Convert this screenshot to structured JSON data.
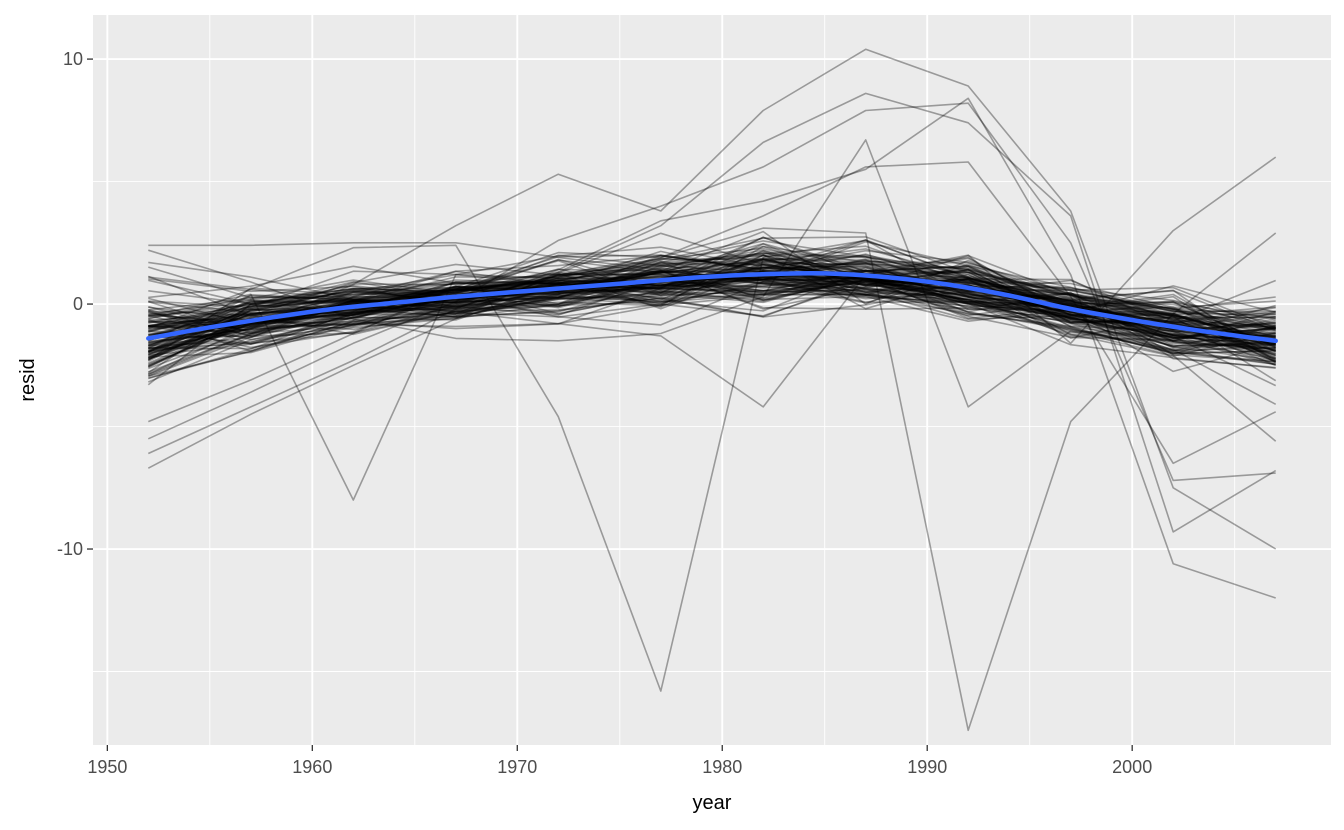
{
  "chart_data": {
    "type": "line",
    "title": "",
    "xlabel": "year",
    "ylabel": "resid",
    "xlim": [
      1949.3,
      2009.7
    ],
    "ylim": [
      -18.0,
      11.8
    ],
    "x_ticks": [
      1950,
      1960,
      1970,
      1980,
      1990,
      2000
    ],
    "x_tick_labels": [
      "1950",
      "1960",
      "1970",
      "1980",
      "1990",
      "2000"
    ],
    "y_ticks": [
      -10,
      0,
      10
    ],
    "y_tick_labels": [
      "-10",
      "0",
      "10"
    ],
    "grid": true,
    "legend": "none",
    "x": [
      1952,
      1957,
      1962,
      1967,
      1972,
      1977,
      1982,
      1987,
      1992,
      1997,
      2002,
      2007
    ],
    "outlier_series": [
      {
        "values": [
          2.4,
          2.4,
          2.5,
          2.5,
          1.9,
          1.4,
          1.2,
          1.0,
          0.6,
          0.2,
          -0.2,
          -0.4
        ]
      },
      {
        "values": [
          -0.5,
          0.4,
          -8.0,
          1.2,
          0.8,
          0.9,
          1.5,
          2.0,
          1.2,
          -0.6,
          -0.9,
          -1.2
        ]
      },
      {
        "values": [
          -1.0,
          0.6,
          2.3,
          2.4,
          -4.6,
          -15.8,
          1.9,
          2.6,
          1.1,
          -0.9,
          -1.1,
          -1.2
        ]
      },
      {
        "values": [
          -2.0,
          -1.0,
          0.8,
          3.2,
          5.3,
          3.8,
          7.9,
          10.4,
          8.9,
          3.8,
          -7.5,
          -10.0
        ]
      },
      {
        "values": [
          -6.7,
          -4.5,
          -2.5,
          -0.6,
          1.3,
          3.2,
          6.6,
          8.6,
          7.4,
          3.6,
          -9.3,
          -6.8
        ]
      },
      {
        "values": [
          -5.5,
          -3.6,
          -1.6,
          0.1,
          2.6,
          4.0,
          5.6,
          7.9,
          8.2,
          2.5,
          -7.2,
          -6.9
        ]
      },
      {
        "values": [
          -4.8,
          -3.1,
          -1.2,
          0.7,
          2.1,
          1.9,
          3.1,
          2.9,
          -17.4,
          -4.8,
          -0.4,
          2.9
        ]
      },
      {
        "values": [
          -6.1,
          -4.2,
          -2.3,
          -0.2,
          1.4,
          3.4,
          4.2,
          5.5,
          8.4,
          1.2,
          -10.6,
          -12.0
        ]
      },
      {
        "values": [
          1.1,
          0.6,
          0.2,
          -0.3,
          -0.8,
          -1.3,
          -4.2,
          1.2,
          2.0,
          -1.6,
          3.0,
          6.0
        ]
      },
      {
        "values": [
          2.2,
          0.9,
          -0.6,
          -1.4,
          -1.5,
          -1.2,
          0.3,
          6.7,
          -4.2,
          -1.1,
          -2.1,
          -5.6
        ]
      },
      {
        "values": [
          1.7,
          1.1,
          0.2,
          -0.2,
          0.6,
          1.9,
          3.6,
          5.6,
          5.8,
          0.3,
          -6.5,
          -4.4
        ]
      }
    ],
    "smooth_series": {
      "name": "",
      "color": "#3366ff",
      "x": [
        1952,
        1955,
        1958,
        1961,
        1964,
        1967,
        1970,
        1973,
        1976,
        1979,
        1982,
        1985,
        1988,
        1991,
        1994,
        1997,
        2000,
        2003,
        2007
      ],
      "values": [
        -1.4,
        -0.95,
        -0.55,
        -0.2,
        0.05,
        0.3,
        0.5,
        0.7,
        0.9,
        1.1,
        1.22,
        1.25,
        1.1,
        0.8,
        0.35,
        -0.2,
        -0.65,
        -1.05,
        -1.5
      ]
    },
    "line_color": "#000000",
    "line_opacity": 0.35,
    "panel_color": "#ebebeb",
    "grid_color": "#ffffff"
  }
}
